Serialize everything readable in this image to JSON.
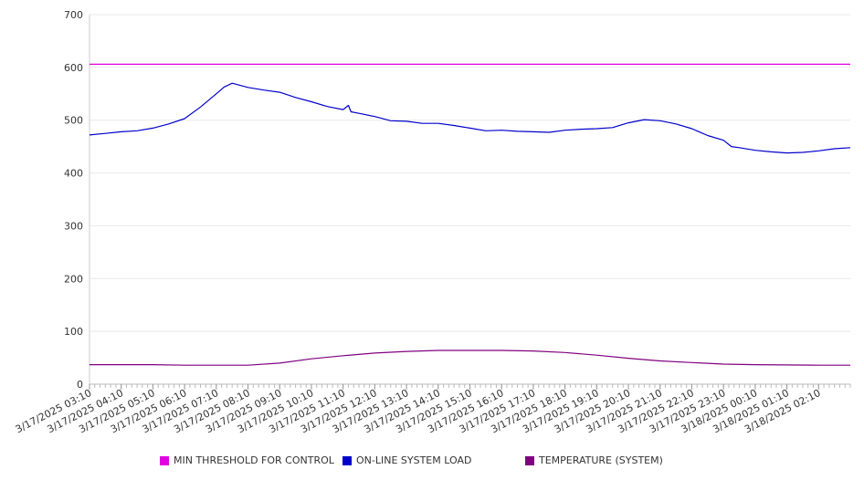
{
  "chart_data": {
    "type": "line",
    "ylim": [
      0,
      700
    ],
    "y_ticks": [
      "0",
      "100",
      "200",
      "300",
      "400",
      "500",
      "600",
      "700"
    ],
    "x_tick_labels": [
      "3/17/2025 03:10",
      "3/17/2025 04:10",
      "3/17/2025 05:10",
      "3/17/2025 06:10",
      "3/17/2025 07:10",
      "3/17/2025 08:10",
      "3/17/2025 09:10",
      "3/17/2025 10:10",
      "3/17/2025 11:10",
      "3/17/2025 12:10",
      "3/17/2025 13:10",
      "3/17/2025 14:10",
      "3/17/2025 15:10",
      "3/17/2025 16:10",
      "3/17/2025 17:10",
      "3/17/2025 18:10",
      "3/17/2025 19:10",
      "3/17/2025 20:10",
      "3/17/2025 21:10",
      "3/17/2025 22:10",
      "3/17/2025 23:10",
      "3/18/2025 00:10",
      "3/18/2025 01:10",
      "3/18/2025 02:10"
    ],
    "x_end": "3/18/2025 03:10",
    "grid": true,
    "legend_position": "bottom",
    "series": [
      {
        "name": "MIN THRESHOLD FOR CONTROL",
        "color": "#e000e0",
        "points": [
          [
            "3/17/2025 03:10",
            606
          ],
          [
            "3/18/2025 03:10",
            606
          ]
        ]
      },
      {
        "name": "ON-LINE SYSTEM LOAD",
        "color": "#0000cc",
        "points": [
          [
            "3/17/2025 03:10",
            472
          ],
          [
            "3/17/2025 03:40",
            475
          ],
          [
            "3/17/2025 04:10",
            478
          ],
          [
            "3/17/2025 04:40",
            480
          ],
          [
            "3/17/2025 05:10",
            485
          ],
          [
            "3/17/2025 05:40",
            493
          ],
          [
            "3/17/2025 06:10",
            503
          ],
          [
            "3/17/2025 06:40",
            525
          ],
          [
            "3/17/2025 07:10",
            550
          ],
          [
            "3/17/2025 07:25",
            563
          ],
          [
            "3/17/2025 07:40",
            570
          ],
          [
            "3/17/2025 08:10",
            562
          ],
          [
            "3/17/2025 08:40",
            557
          ],
          [
            "3/17/2025 09:10",
            553
          ],
          [
            "3/17/2025 09:40",
            543
          ],
          [
            "3/17/2025 10:10",
            535
          ],
          [
            "3/17/2025 10:40",
            526
          ],
          [
            "3/17/2025 11:10",
            520
          ],
          [
            "3/17/2025 11:20",
            528
          ],
          [
            "3/17/2025 11:25",
            516
          ],
          [
            "3/17/2025 11:40",
            513
          ],
          [
            "3/17/2025 12:10",
            507
          ],
          [
            "3/17/2025 12:40",
            499
          ],
          [
            "3/17/2025 13:10",
            498
          ],
          [
            "3/17/2025 13:40",
            494
          ],
          [
            "3/17/2025 14:10",
            494
          ],
          [
            "3/17/2025 14:40",
            490
          ],
          [
            "3/17/2025 15:10",
            485
          ],
          [
            "3/17/2025 15:40",
            480
          ],
          [
            "3/17/2025 16:10",
            481
          ],
          [
            "3/17/2025 16:40",
            479
          ],
          [
            "3/17/2025 17:10",
            478
          ],
          [
            "3/17/2025 17:40",
            477
          ],
          [
            "3/17/2025 18:10",
            481
          ],
          [
            "3/17/2025 18:40",
            483
          ],
          [
            "3/17/2025 19:10",
            484
          ],
          [
            "3/17/2025 19:40",
            486
          ],
          [
            "3/17/2025 20:10",
            495
          ],
          [
            "3/17/2025 20:40",
            501
          ],
          [
            "3/17/2025 21:10",
            499
          ],
          [
            "3/17/2025 21:40",
            493
          ],
          [
            "3/17/2025 22:10",
            484
          ],
          [
            "3/17/2025 22:40",
            471
          ],
          [
            "3/17/2025 23:10",
            462
          ],
          [
            "3/17/2025 23:25",
            450
          ],
          [
            "3/17/2025 23:40",
            448
          ],
          [
            "3/18/2025 00:10",
            443
          ],
          [
            "3/18/2025 00:40",
            440
          ],
          [
            "3/18/2025 01:10",
            438
          ],
          [
            "3/18/2025 01:40",
            439
          ],
          [
            "3/18/2025 02:10",
            442
          ],
          [
            "3/18/2025 02:40",
            446
          ],
          [
            "3/18/2025 03:10",
            448
          ]
        ]
      },
      {
        "name": "TEMPERATURE (SYSTEM)",
        "color": "#800080",
        "points": [
          [
            "3/17/2025 03:10",
            37
          ],
          [
            "3/17/2025 05:10",
            37
          ],
          [
            "3/17/2025 06:10",
            36
          ],
          [
            "3/17/2025 08:10",
            36
          ],
          [
            "3/17/2025 09:10",
            40
          ],
          [
            "3/17/2025 10:10",
            48
          ],
          [
            "3/17/2025 11:10",
            54
          ],
          [
            "3/17/2025 12:10",
            59
          ],
          [
            "3/17/2025 13:10",
            62
          ],
          [
            "3/17/2025 14:10",
            64
          ],
          [
            "3/17/2025 16:10",
            64
          ],
          [
            "3/17/2025 17:10",
            63
          ],
          [
            "3/17/2025 18:10",
            60
          ],
          [
            "3/17/2025 19:10",
            55
          ],
          [
            "3/17/2025 20:10",
            49
          ],
          [
            "3/17/2025 21:10",
            44
          ],
          [
            "3/17/2025 22:10",
            41
          ],
          [
            "3/17/2025 23:10",
            38
          ],
          [
            "3/18/2025 00:10",
            37
          ],
          [
            "3/18/2025 02:10",
            36
          ],
          [
            "3/18/2025 03:10",
            36
          ]
        ]
      }
    ]
  }
}
